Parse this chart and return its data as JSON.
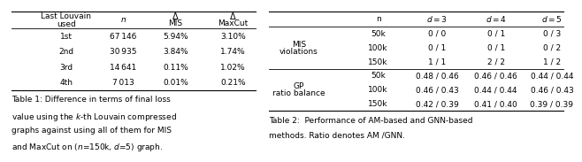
{
  "table1": {
    "rows": [
      [
        "1st",
        "67 146",
        "5.94%",
        "3.10%"
      ],
      [
        "2nd",
        "30 935",
        "3.84%",
        "1.74%"
      ],
      [
        "3rd",
        "14 641",
        "0.11%",
        "1.02%"
      ],
      [
        "4th",
        "7 013",
        "0.01%",
        "0.21%"
      ]
    ]
  },
  "table2": {
    "row_groups": [
      {
        "group_label_line1": "MIS",
        "group_label_line2": "violations",
        "rows": [
          [
            "50k",
            "0 / 0",
            "0 / 1",
            "0 / 3"
          ],
          [
            "100k",
            "0 / 1",
            "0 / 1",
            "0 / 2"
          ],
          [
            "150k",
            "1 / 1",
            "2 / 2",
            "1 / 2"
          ]
        ]
      },
      {
        "group_label_line1": "GP",
        "group_label_line2": "ratio balance",
        "rows": [
          [
            "50k",
            "0.48 / 0.46",
            "0.46 / 0.46",
            "0.44 / 0.44"
          ],
          [
            "100k",
            "0.46 / 0.43",
            "0.44 / 0.44",
            "0.46 / 0.43"
          ],
          [
            "150k",
            "0.42 / 0.39",
            "0.41 / 0.40",
            "0.39 / 0.39"
          ]
        ]
      }
    ]
  },
  "bg_color": "#ffffff",
  "text_color": "#000000",
  "font_size": 6.5,
  "caption_font_size": 6.5
}
